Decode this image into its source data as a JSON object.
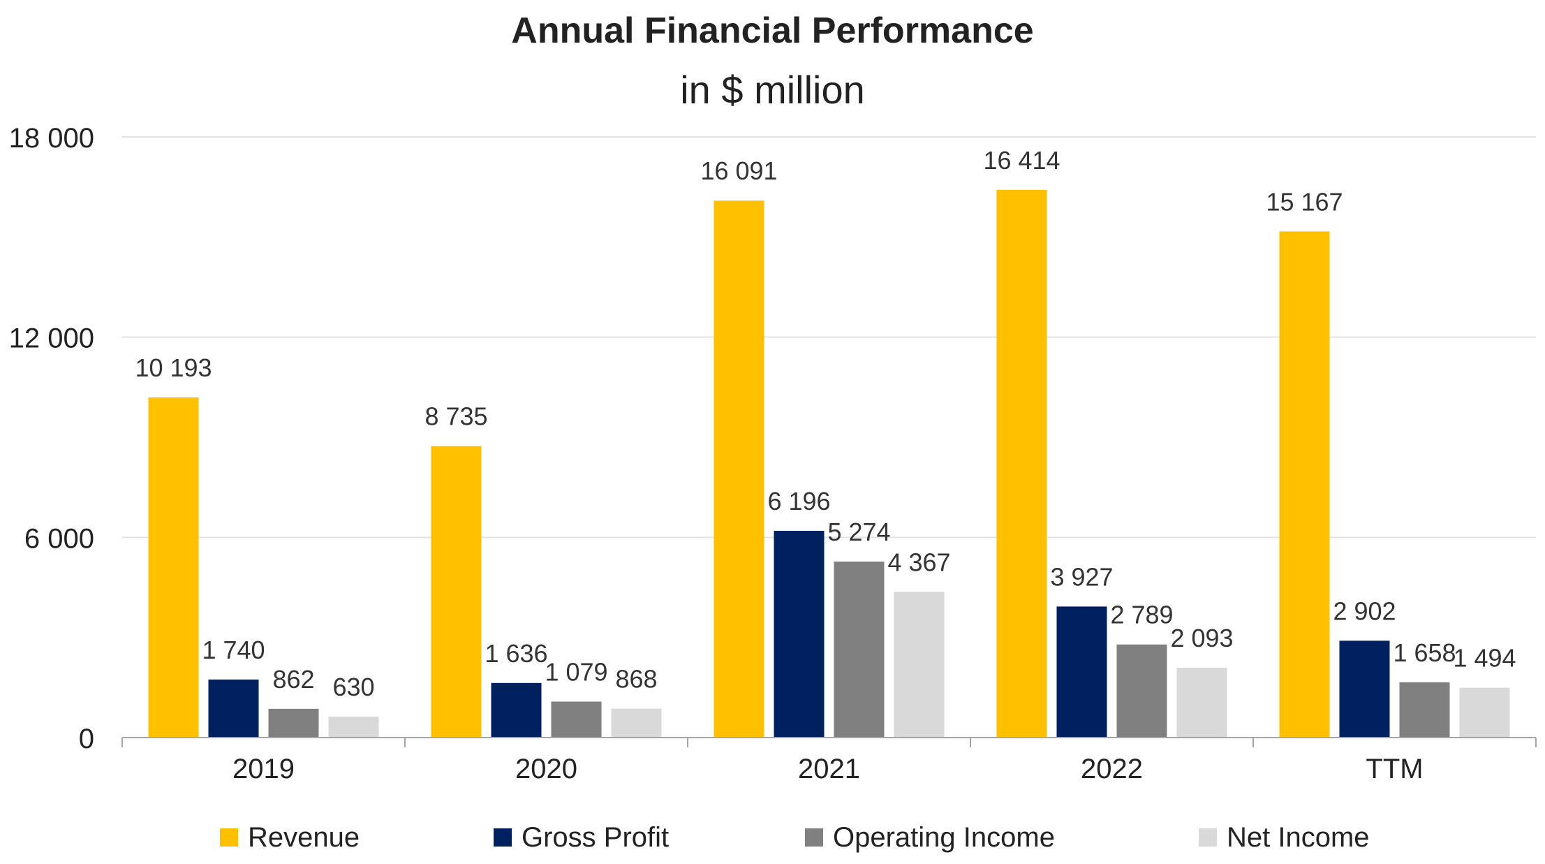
{
  "chart_data": {
    "type": "bar",
    "title": "Annual Financial Performance",
    "subtitle": "in $ million",
    "xlabel": "",
    "ylabel": "",
    "categories": [
      "2019",
      "2020",
      "2021",
      "2022",
      "TTM"
    ],
    "ylim": [
      0,
      18000
    ],
    "y_ticks": [
      0,
      6000,
      12000,
      18000
    ],
    "y_tick_labels": [
      "0",
      "6 000",
      "12 000",
      "18 000"
    ],
    "grid": true,
    "legend_position": "bottom",
    "series": [
      {
        "name": "Revenue",
        "color": "#FFC000",
        "values": [
          10193,
          8735,
          16091,
          16414,
          15167
        ],
        "labels": [
          "10 193",
          "8 735",
          "16 091",
          "16 414",
          "15 167"
        ]
      },
      {
        "name": "Gross Profit",
        "color": "#002060",
        "values": [
          1740,
          1636,
          6196,
          3927,
          2902
        ],
        "labels": [
          "1 740",
          "1 636",
          "6 196",
          "3 927",
          "2 902"
        ]
      },
      {
        "name": "Operating Income",
        "color": "#808080",
        "values": [
          862,
          1079,
          5274,
          2789,
          1658
        ],
        "labels": [
          "862",
          "1 079",
          "5 274",
          "2 789",
          "1 658"
        ]
      },
      {
        "name": "Net Income",
        "color": "#D9D9D9",
        "values": [
          630,
          868,
          4367,
          2093,
          1494
        ],
        "labels": [
          "630",
          "868",
          "4 367",
          "2 093",
          "1 494"
        ]
      }
    ]
  }
}
